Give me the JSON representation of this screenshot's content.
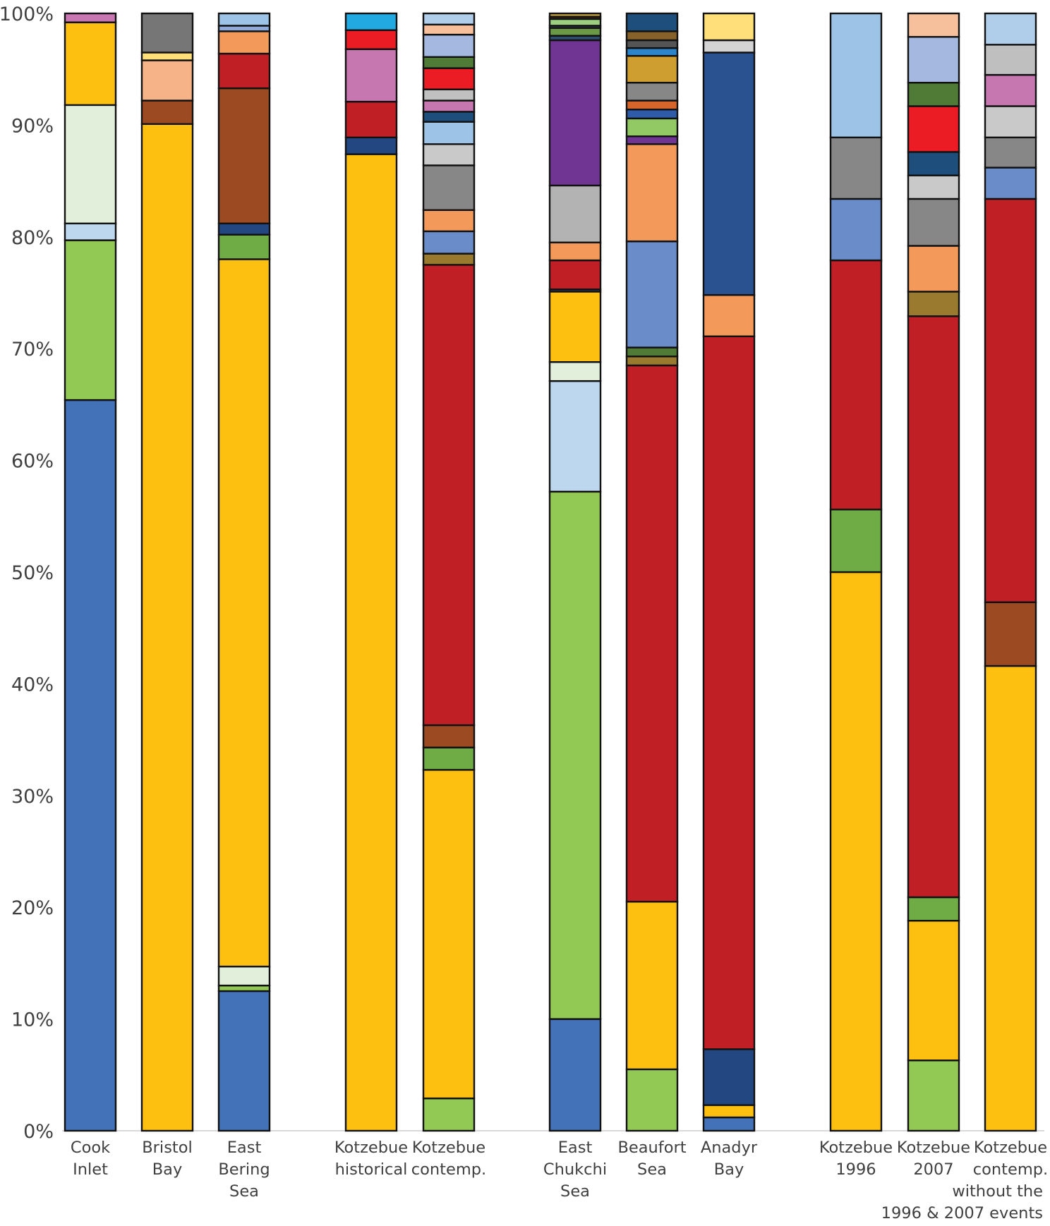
{
  "chart_data": {
    "type": "bar",
    "stacked": true,
    "normalized": true,
    "title": "",
    "xlabel": "",
    "ylabel": "",
    "ylim": [
      0,
      100
    ],
    "yticks": [
      "0%",
      "10%",
      "20%",
      "30%",
      "40%",
      "50%",
      "60%",
      "70%",
      "80%",
      "90%",
      "100%"
    ],
    "grid": false,
    "legend": "none",
    "groups": [
      [
        "Cook Inlet",
        "Bristol Bay",
        "East Bering Sea"
      ],
      [
        "Kotzebue historical",
        "Kotzebue contemp."
      ],
      [
        "East Chukchi Sea",
        "Beaufort Sea",
        "Anadyr Bay"
      ],
      [
        "Kotzebue 1996",
        "Kotzebue 2007",
        "Kotzebue contemp. without the 1996 & 2007 events"
      ]
    ],
    "categories": [
      {
        "label_lines": [
          "Cook",
          "Inlet"
        ],
        "segments_bottom_to_top": [
          {
            "value": 65.4,
            "color": "#4472b8"
          },
          {
            "value": 14.3,
            "color": "#92c955"
          },
          {
            "value": 1.5,
            "color": "#bdd7ee"
          },
          {
            "value": 10.6,
            "color": "#e2efda"
          },
          {
            "value": 7.4,
            "color": "#fdc010"
          },
          {
            "value": 0.8,
            "color": "#c877b2"
          }
        ]
      },
      {
        "label_lines": [
          "Bristol",
          "Bay"
        ],
        "segments_bottom_to_top": [
          {
            "value": 90.1,
            "color": "#fdc010"
          },
          {
            "value": 2.1,
            "color": "#9c4a22"
          },
          {
            "value": 3.6,
            "color": "#f5b387"
          },
          {
            "value": 0.7,
            "color": "#ffdf7a"
          },
          {
            "value": 3.5,
            "color": "#767676"
          }
        ]
      },
      {
        "label_lines": [
          "East",
          "Bering",
          "Sea"
        ],
        "segments_bottom_to_top": [
          {
            "value": 12.5,
            "color": "#4472b8"
          },
          {
            "value": 0.5,
            "color": "#92c955"
          },
          {
            "value": 1.7,
            "color": "#e2efda"
          },
          {
            "value": 63.3,
            "color": "#fdc010"
          },
          {
            "value": 2.2,
            "color": "#6fac46"
          },
          {
            "value": 1.0,
            "color": "#234780"
          },
          {
            "value": 12.1,
            "color": "#9c4a22"
          },
          {
            "value": 3.1,
            "color": "#c01f26"
          },
          {
            "value": 2.0,
            "color": "#f3995a"
          },
          {
            "value": 0.5,
            "color": "#8eaadb"
          },
          {
            "value": 1.1,
            "color": "#9dc3e6"
          }
        ]
      },
      {
        "label_lines": [
          "Kotzebue",
          "historical"
        ],
        "segments_bottom_to_top": [
          {
            "value": 87.4,
            "color": "#fdc010"
          },
          {
            "value": 1.5,
            "color": "#234780"
          },
          {
            "value": 3.2,
            "color": "#c01f26"
          },
          {
            "value": 4.7,
            "color": "#c677b0"
          },
          {
            "value": 1.7,
            "color": "#ec1c24"
          },
          {
            "value": 1.5,
            "color": "#22a9e1"
          }
        ]
      },
      {
        "label_lines": [
          "Kotzebue",
          "contemp."
        ],
        "segments_bottom_to_top": [
          {
            "value": 2.9,
            "color": "#92c955"
          },
          {
            "value": 29.4,
            "color": "#fdc010"
          },
          {
            "value": 2.0,
            "color": "#6fac46"
          },
          {
            "value": 2.0,
            "color": "#9c4a22"
          },
          {
            "value": 41.2,
            "color": "#c01f26"
          },
          {
            "value": 1.0,
            "color": "#9a7a2e"
          },
          {
            "value": 2.0,
            "color": "#6a8cc8"
          },
          {
            "value": 1.9,
            "color": "#f3995a"
          },
          {
            "value": 4.0,
            "color": "#878787"
          },
          {
            "value": 1.9,
            "color": "#c9c9c9"
          },
          {
            "value": 2.0,
            "color": "#9dc3e6"
          },
          {
            "value": 0.9,
            "color": "#1e4e7c"
          },
          {
            "value": 1.0,
            "color": "#c677b0"
          },
          {
            "value": 1.0,
            "color": "#c0c0c0"
          },
          {
            "value": 1.9,
            "color": "#ec1c24"
          },
          {
            "value": 1.0,
            "color": "#507b36"
          },
          {
            "value": 2.0,
            "color": "#a4b8e0"
          },
          {
            "value": 0.9,
            "color": "#f6c09c"
          },
          {
            "value": 1.0,
            "color": "#b0cdea"
          }
        ]
      },
      {
        "label_lines": [
          "East",
          "Chukchi",
          "Sea"
        ],
        "segments_bottom_to_top": [
          {
            "value": 10.0,
            "color": "#4472b8"
          },
          {
            "value": 47.2,
            "color": "#92c955"
          },
          {
            "value": 9.9,
            "color": "#bdd7ee"
          },
          {
            "value": 1.7,
            "color": "#e2efda"
          },
          {
            "value": 6.3,
            "color": "#fdc010"
          },
          {
            "value": 0.2,
            "color": "#234780"
          },
          {
            "value": 2.6,
            "color": "#c01f26"
          },
          {
            "value": 1.6,
            "color": "#f3995a"
          },
          {
            "value": 5.1,
            "color": "#b3b3b3"
          },
          {
            "value": 13.0,
            "color": "#703593"
          },
          {
            "value": 0.4,
            "color": "#2f4f6f"
          },
          {
            "value": 0.7,
            "color": "#6a9a45"
          },
          {
            "value": 0.2,
            "color": "#3f5a6a"
          },
          {
            "value": 0.6,
            "color": "#9ccf7f"
          },
          {
            "value": 0.2,
            "color": "#4a2a12"
          },
          {
            "value": 0.3,
            "color": "#c4a040"
          }
        ]
      },
      {
        "label_lines": [
          "Beaufort",
          "Sea"
        ],
        "segments_bottom_to_top": [
          {
            "value": 5.5,
            "color": "#92c955"
          },
          {
            "value": 15.0,
            "color": "#fdc010"
          },
          {
            "value": 48.0,
            "color": "#c01f26"
          },
          {
            "value": 0.8,
            "color": "#9a7a2e"
          },
          {
            "value": 0.8,
            "color": "#507b36"
          },
          {
            "value": 9.5,
            "color": "#6a8cc8"
          },
          {
            "value": 8.7,
            "color": "#f3995a"
          },
          {
            "value": 0.7,
            "color": "#703593"
          },
          {
            "value": 1.6,
            "color": "#92c965"
          },
          {
            "value": 0.8,
            "color": "#2f5ca8"
          },
          {
            "value": 0.8,
            "color": "#d5652a"
          },
          {
            "value": 1.6,
            "color": "#878787"
          },
          {
            "value": 2.4,
            "color": "#cf9e30"
          },
          {
            "value": 0.7,
            "color": "#2d84c9"
          },
          {
            "value": 0.7,
            "color": "#555555"
          },
          {
            "value": 0.8,
            "color": "#86622a"
          },
          {
            "value": 1.6,
            "color": "#1e4e7c"
          }
        ]
      },
      {
        "label_lines": [
          "Anadyr",
          "Bay"
        ],
        "segments_bottom_to_top": [
          {
            "value": 1.2,
            "color": "#4472b8"
          },
          {
            "value": 1.1,
            "color": "#fdc010"
          },
          {
            "value": 5.0,
            "color": "#234780"
          },
          {
            "value": 63.8,
            "color": "#c01f26"
          },
          {
            "value": 3.7,
            "color": "#f3995a"
          },
          {
            "value": 21.7,
            "color": "#2a5190"
          },
          {
            "value": 1.1,
            "color": "#d4d4d4"
          },
          {
            "value": 2.4,
            "color": "#ffdf7a"
          }
        ]
      },
      {
        "label_lines": [
          "Kotzebue",
          "1996"
        ],
        "segments_bottom_to_top": [
          {
            "value": 50.0,
            "color": "#fdc010"
          },
          {
            "value": 5.6,
            "color": "#6fac46"
          },
          {
            "value": 22.3,
            "color": "#c01f26"
          },
          {
            "value": 5.5,
            "color": "#6a8cc8"
          },
          {
            "value": 5.5,
            "color": "#878787"
          },
          {
            "value": 11.1,
            "color": "#9dc3e6"
          }
        ]
      },
      {
        "label_lines": [
          "Kotzebue",
          "2007"
        ],
        "segments_bottom_to_top": [
          {
            "value": 6.3,
            "color": "#92c955"
          },
          {
            "value": 12.5,
            "color": "#fdc010"
          },
          {
            "value": 2.1,
            "color": "#6fac46"
          },
          {
            "value": 52.0,
            "color": "#c01f26"
          },
          {
            "value": 2.2,
            "color": "#9a7a2e"
          },
          {
            "value": 4.1,
            "color": "#f3995a"
          },
          {
            "value": 4.2,
            "color": "#878787"
          },
          {
            "value": 2.1,
            "color": "#c9c9c9"
          },
          {
            "value": 2.1,
            "color": "#1e4e7c"
          },
          {
            "value": 4.1,
            "color": "#ec1c24"
          },
          {
            "value": 2.1,
            "color": "#507b36"
          },
          {
            "value": 4.1,
            "color": "#a4b8e0"
          },
          {
            "value": 2.1,
            "color": "#f6c09c"
          }
        ]
      },
      {
        "label_lines": [
          "Kotzebue",
          "contemp.",
          "without the",
          "1996 & 2007 events"
        ],
        "segments_bottom_to_top": [
          {
            "value": 41.6,
            "color": "#fdc010"
          },
          {
            "value": 5.7,
            "color": "#9c4a22"
          },
          {
            "value": 36.1,
            "color": "#c01f26"
          },
          {
            "value": 2.8,
            "color": "#6a8cc8"
          },
          {
            "value": 2.7,
            "color": "#878787"
          },
          {
            "value": 2.8,
            "color": "#c9c9c9"
          },
          {
            "value": 2.8,
            "color": "#c677b0"
          },
          {
            "value": 2.7,
            "color": "#bfbfbf"
          },
          {
            "value": 2.8,
            "color": "#b0cdea"
          }
        ]
      }
    ]
  }
}
